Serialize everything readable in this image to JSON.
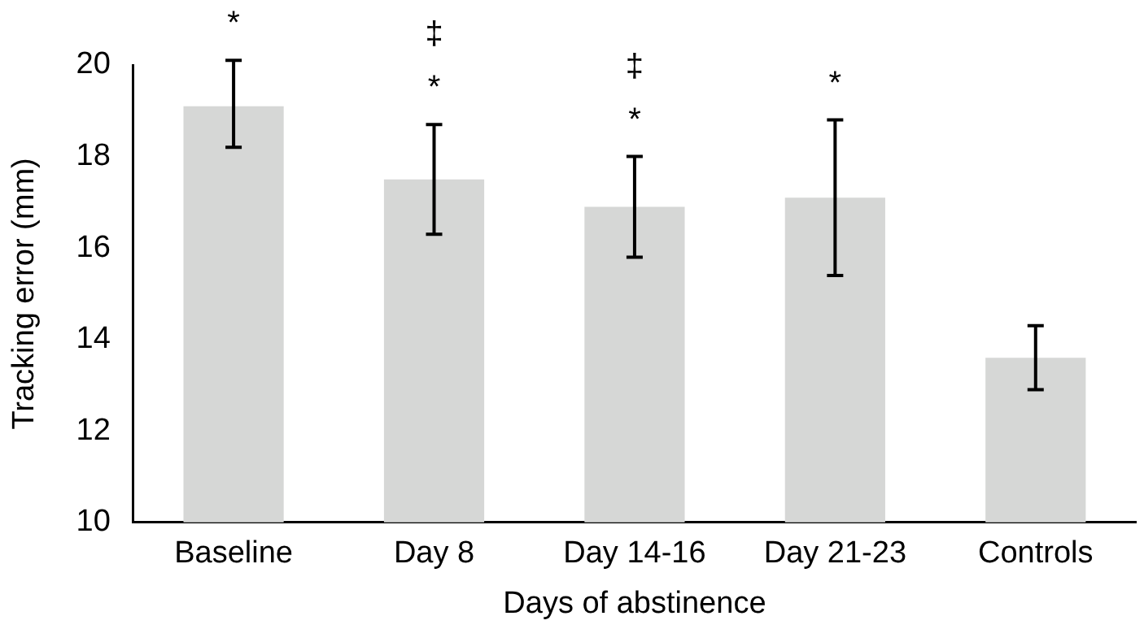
{
  "chart_data": {
    "type": "bar",
    "xlabel": "Days of abstinence",
    "ylabel": "Tracking error (mm)",
    "categories": [
      "Baseline",
      "Day 8",
      "Day 14-16",
      "Day 21-23",
      "Controls"
    ],
    "values": [
      19.1,
      17.5,
      16.9,
      17.1,
      13.6
    ],
    "errors": [
      [
        18.2,
        20.1
      ],
      [
        16.3,
        18.7
      ],
      [
        15.8,
        18.0
      ],
      [
        15.4,
        18.8
      ],
      [
        12.9,
        14.3
      ]
    ],
    "color": "#d6d7d6",
    "ylim": [
      10,
      20
    ],
    "yticks": [
      10,
      12,
      14,
      16,
      18,
      20
    ],
    "grid": false,
    "legend": false,
    "annotations": [
      {
        "text": "*",
        "x": "Baseline",
        "y": 20.1
      },
      {
        "text": "*",
        "x": "Day 8",
        "y": 18.7
      },
      {
        "text": "‡",
        "x": "Day 8",
        "y": 18.7
      },
      {
        "text": "*",
        "x": "Day 14-16",
        "y": 18.0
      },
      {
        "text": "‡",
        "x": "Day 14-16",
        "y": 18.0
      },
      {
        "text": "*",
        "x": "Day 21-23",
        "y": 18.8
      }
    ]
  }
}
